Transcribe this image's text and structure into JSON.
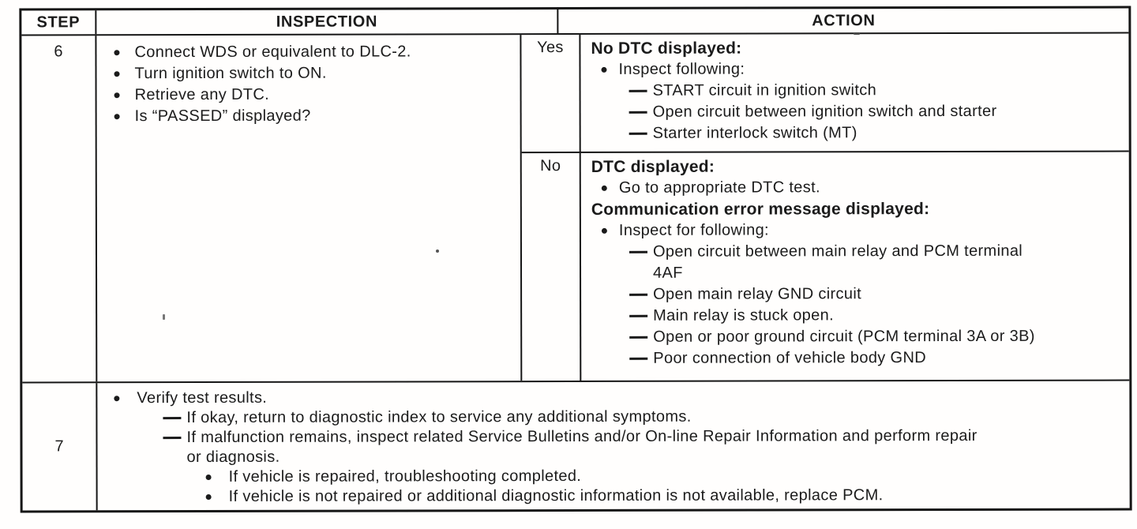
{
  "colors": {
    "paper": "#fffefd",
    "ink": "#1b1b1b",
    "border": "#161616"
  },
  "header": {
    "step": "STEP",
    "inspection": "INSPECTION",
    "action": "ACTION"
  },
  "step6": {
    "number": "6",
    "inspection": [
      "Connect WDS or equivalent to DLC-2.",
      "Turn ignition switch to ON.",
      "Retrieve any DTC.",
      "Is “PASSED” displayed?"
    ],
    "yes": {
      "label": "Yes",
      "heading": "No DTC displayed:",
      "bullet": "Inspect following:",
      "dashes": [
        "START circuit in ignition switch",
        "Open circuit between ignition switch and starter",
        "Starter interlock switch (MT)"
      ]
    },
    "no": {
      "label": "No",
      "heading1": "DTC displayed:",
      "bullet1": "Go to appropriate DTC test.",
      "heading2": "Communication error message displayed:",
      "bullet2": "Inspect for following:",
      "dashes": [
        "Open circuit between main relay and PCM terminal\n4AF",
        "Open main relay GND circuit",
        "Main relay is stuck open.",
        "Open or poor ground circuit (PCM terminal 3A or 3B)",
        "Poor connection of vehicle body GND"
      ]
    }
  },
  "step7": {
    "number": "7",
    "bullet": "Verify test results.",
    "dashes": [
      "If okay, return to diagnostic index to service any additional symptoms.",
      "If malfunction remains, inspect related Service Bulletins and/or On-line Repair Information and perform repair\nor diagnosis."
    ],
    "sub_bullets": [
      "If vehicle is repaired, troubleshooting completed.",
      "If vehicle is not repaired or additional diagnostic information is not available, replace PCM."
    ]
  }
}
